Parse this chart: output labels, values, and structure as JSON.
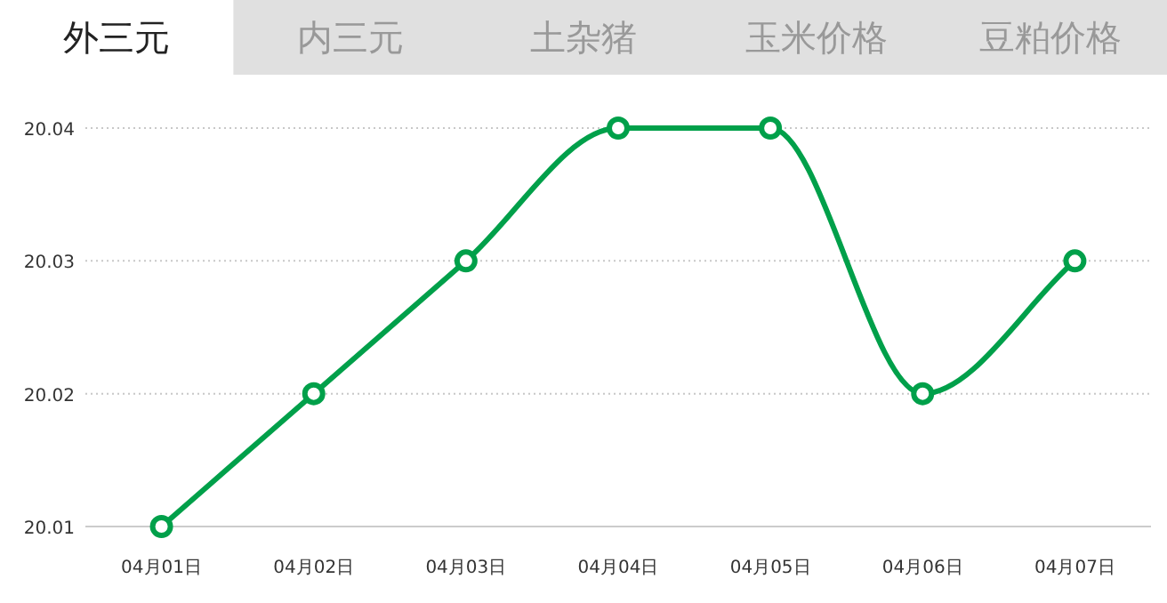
{
  "chart_data": {
    "type": "line",
    "title": "外三元",
    "annotations": [
      "内三元",
      "土杂猪",
      "玉米价格",
      "豆粕价格"
    ],
    "categories": [
      "04月01日",
      "04月02日",
      "04月03日",
      "04月04日",
      "04月05日",
      "04月06日",
      "04月07日"
    ],
    "series": [
      {
        "color": "#00a04a",
        "values": [
          20.01,
          20.02,
          20.03,
          20.04,
          20.04,
          20.02,
          20.03
        ]
      }
    ],
    "ylim": [
      20.01,
      20.04
    ],
    "yticks": [
      20.01,
      20.02,
      20.03,
      20.04
    ],
    "grid": "y",
    "marker": "circle",
    "line_style": "solid"
  }
}
